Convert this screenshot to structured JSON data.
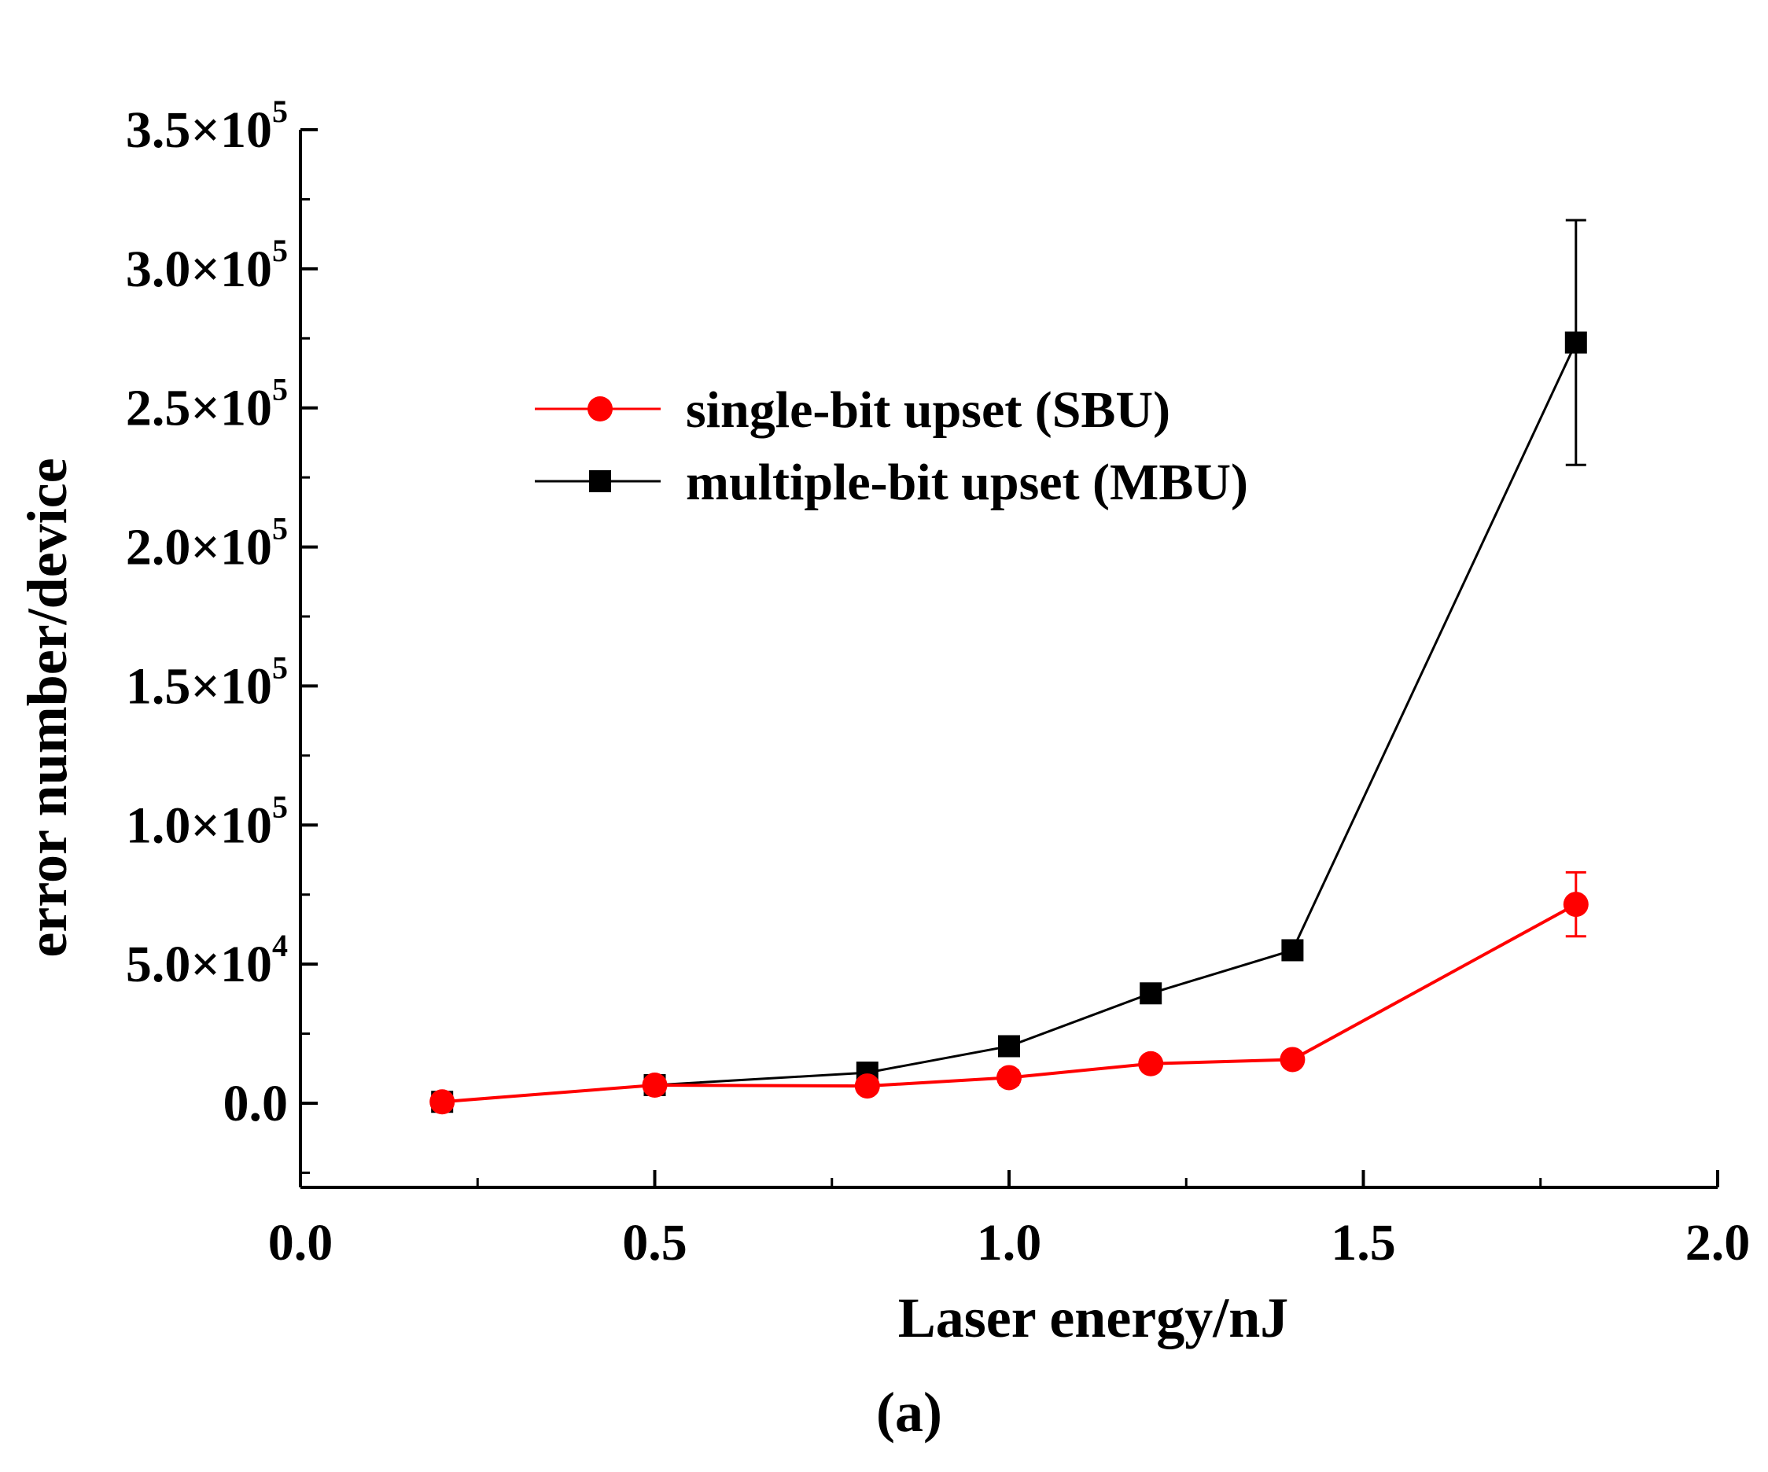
{
  "chart_data": {
    "type": "line",
    "title": "",
    "caption": "(a)",
    "xlabel": "Laser energy/nJ",
    "ylabel": "error number/device",
    "xlim": [
      0.0,
      2.0
    ],
    "ylim": [
      -30000,
      350000
    ],
    "x_ticks": [
      0.0,
      0.5,
      1.0,
      1.5,
      2.0
    ],
    "x_tick_labels": [
      "0.0",
      "0.5",
      "1.0",
      "1.5",
      "2.0"
    ],
    "y_ticks": [
      0,
      50000,
      100000,
      150000,
      200000,
      250000,
      300000,
      350000
    ],
    "y_tick_labels": [
      {
        "mantissa": "0.0",
        "exponent": ""
      },
      {
        "mantissa": "5.0×10",
        "exponent": "4"
      },
      {
        "mantissa": "1.0×10",
        "exponent": "5"
      },
      {
        "mantissa": "1.5×10",
        "exponent": "5"
      },
      {
        "mantissa": "2.0×10",
        "exponent": "5"
      },
      {
        "mantissa": "2.5×10",
        "exponent": "5"
      },
      {
        "mantissa": "3.0×10",
        "exponent": "5"
      },
      {
        "mantissa": "3.5×10",
        "exponent": "5"
      }
    ],
    "grid": false,
    "legend_position": "upper-center",
    "series": [
      {
        "name": "single-bit upset (SBU)",
        "marker": "circle",
        "color": "#ff0000",
        "x": [
          0.2,
          0.5,
          0.8,
          1.0,
          1.2,
          1.4,
          1.8
        ],
        "y": [
          500,
          6500,
          6200,
          9200,
          14200,
          15700,
          71500
        ],
        "err": [
          1500,
          1500,
          1500,
          2500,
          1500,
          1500,
          11500
        ]
      },
      {
        "name": "multiple-bit upset (MBU)",
        "marker": "square",
        "color": "#000000",
        "x": [
          0.2,
          0.5,
          0.8,
          1.0,
          1.2,
          1.4,
          1.8
        ],
        "y": [
          500,
          6500,
          11000,
          20500,
          39500,
          55000,
          273500
        ],
        "err": [
          1000,
          1000,
          2500,
          1000,
          2500,
          1500,
          44000
        ]
      }
    ]
  }
}
